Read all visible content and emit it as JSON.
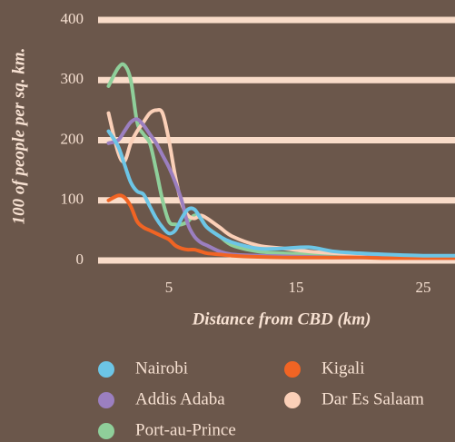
{
  "chart_data": {
    "type": "line",
    "x": [
      0.25,
      1,
      1.5,
      2,
      2.5,
      3,
      3.5,
      4,
      4.5,
      5,
      5.5,
      6,
      6.5,
      7,
      7.5,
      8,
      9,
      10,
      12,
      14,
      16,
      18,
      20,
      22,
      25,
      27.5
    ],
    "xlim": [
      0,
      27.5
    ],
    "xticks": [
      5,
      15,
      25
    ],
    "ylim": [
      0,
      400
    ],
    "yticks": [
      0,
      100,
      200,
      300,
      400
    ],
    "xlabel": "Distance from CBD (km)",
    "ylabel": "100 of people per sq. km.",
    "grid": true,
    "series": [
      {
        "name": "Nairobi",
        "color": "#6cc5e6",
        "values": [
          215,
          190,
          160,
          130,
          115,
          110,
          90,
          70,
          55,
          45,
          50,
          70,
          85,
          85,
          70,
          55,
          40,
          30,
          20,
          20,
          22,
          15,
          12,
          10,
          8,
          8
        ]
      },
      {
        "name": "Kigali",
        "color": "#f06424",
        "values": [
          100,
          108,
          105,
          90,
          65,
          55,
          50,
          45,
          40,
          35,
          25,
          20,
          18,
          18,
          15,
          12,
          10,
          8,
          6,
          5,
          5,
          5,
          5,
          4,
          4,
          4
        ]
      },
      {
        "name": "Addis Adaba",
        "color": "#9b7fc0",
        "values": [
          195,
          200,
          215,
          230,
          235,
          225,
          210,
          195,
          175,
          155,
          130,
          100,
          60,
          40,
          30,
          25,
          15,
          10,
          8,
          7,
          6,
          5,
          5,
          5,
          4,
          4
        ]
      },
      {
        "name": "Dar Es Salaam",
        "color": "#fbd0b8",
        "values": [
          245,
          180,
          165,
          195,
          215,
          230,
          245,
          250,
          245,
          200,
          140,
          95,
          75,
          70,
          75,
          70,
          55,
          40,
          25,
          20,
          15,
          12,
          10,
          8,
          7,
          6
        ]
      },
      {
        "name": "Port-au-Prince",
        "color": "#8fcf9a",
        "values": [
          290,
          320,
          325,
          300,
          230,
          210,
          195,
          150,
          100,
          65,
          60,
          60,
          65,
          75,
          70,
          55,
          40,
          25,
          15,
          12,
          10,
          8,
          7,
          6,
          5,
          5
        ]
      }
    ]
  }
}
